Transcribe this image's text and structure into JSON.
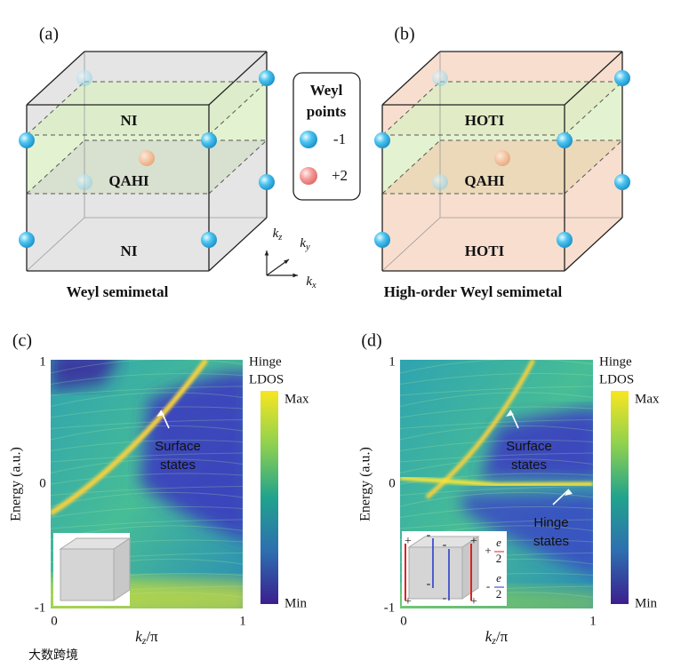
{
  "panel_a": {
    "label": "(a)",
    "regions": [
      "NI",
      "QAHI",
      "NI"
    ],
    "caption": "Weyl semimetal"
  },
  "panel_b": {
    "label": "(b)",
    "regions": [
      "HOTI",
      "QAHI",
      "HOTI"
    ],
    "caption": "High-order Weyl semimetal"
  },
  "legend": {
    "title_lines": [
      "Weyl",
      "points"
    ],
    "entries": [
      {
        "label": "-1"
      },
      {
        "label": "+2"
      }
    ]
  },
  "axes_triad": [
    {
      "base": "k",
      "sub": "z"
    },
    {
      "base": "k",
      "sub": "y"
    },
    {
      "base": "k",
      "sub": "x"
    }
  ],
  "panel_c": {
    "label": "(c)",
    "y_label": "Energy (a.u.)",
    "y_ticks": [
      "1",
      "0",
      "-1"
    ],
    "x_ticks": [
      "0",
      "1"
    ],
    "x_label": {
      "base": "k",
      "sub": "z",
      "rest": "/π"
    },
    "colorbar": {
      "title_lines": [
        "Hinge",
        "LDOS"
      ],
      "max": "Max",
      "min": "Min"
    },
    "annotations": [
      {
        "lines": [
          "Surface",
          "states"
        ]
      }
    ]
  },
  "panel_d": {
    "label": "(d)",
    "y_label": "Energy (a.u.)",
    "y_ticks": [
      "1",
      "0",
      "-1"
    ],
    "x_ticks": [
      "0",
      "1"
    ],
    "x_label": {
      "base": "k",
      "sub": "z",
      "rest": "/π"
    },
    "colorbar": {
      "title_lines": [
        "Hinge",
        "LDOS"
      ],
      "max": "Max",
      "min": "Min"
    },
    "annotations": [
      {
        "lines": [
          "Surface",
          "states"
        ]
      },
      {
        "lines": [
          "Hinge",
          "states"
        ]
      }
    ],
    "inset": {
      "plus": "+",
      "minus": "-",
      "charge_pos": {
        "sign": "+",
        "num": "e",
        "den": "2"
      },
      "charge_neg": {
        "sign": "-",
        "num": "e",
        "den": "2"
      }
    }
  },
  "watermark": "大数跨境"
}
